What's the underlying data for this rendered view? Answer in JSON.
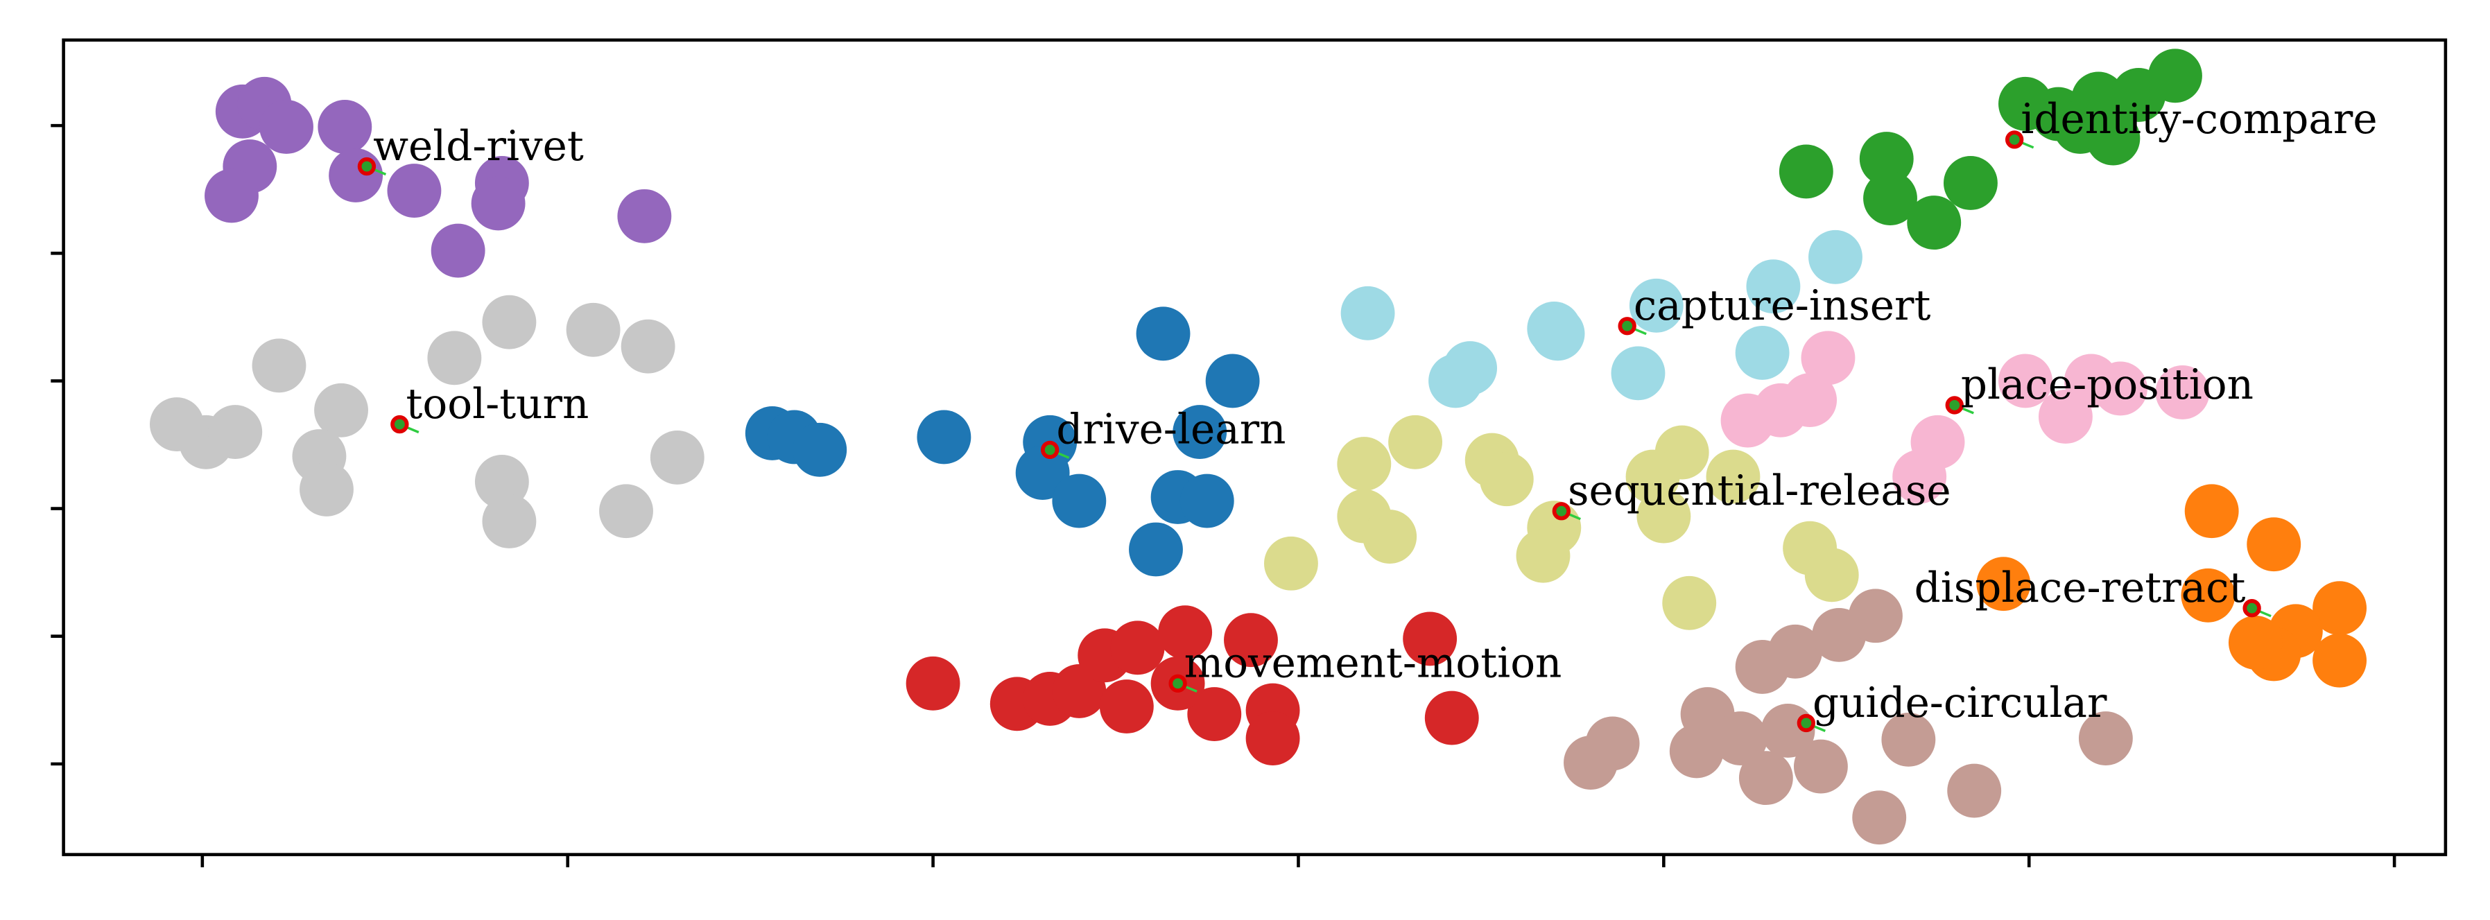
{
  "chart_data": {
    "type": "scatter",
    "xlim": [
      -3.8,
      61.4
    ],
    "ylim": [
      -7.1,
      56.7
    ],
    "xticks": [
      0,
      10,
      20,
      30,
      40,
      50,
      60
    ],
    "yticks": [
      0,
      10,
      20,
      30,
      40,
      50
    ],
    "series": [
      {
        "name": "weld-rivet",
        "color": "#9467bd",
        "x": [
          1.1,
          1.7,
          2.3,
          3.9,
          1.3,
          0.8,
          4.2,
          5.8,
          8.2,
          8.1,
          7.0,
          12.1
        ],
        "y": [
          51.1,
          51.7,
          49.9,
          49.9,
          46.8,
          44.5,
          46.1,
          44.9,
          45.5,
          43.9,
          40.2,
          42.9
        ],
        "centroid": {
          "x": 4.5,
          "y": 46.8
        }
      },
      {
        "name": "tool-turn",
        "color": "#c7c7c7",
        "x": [
          -0.7,
          0.1,
          0.9,
          2.1,
          3.8,
          3.2,
          3.4,
          6.9,
          8.4,
          10.7,
          12.2,
          8.2,
          8.4,
          11.6,
          13.0
        ],
        "y": [
          26.6,
          25.2,
          26.0,
          31.2,
          27.7,
          24.1,
          21.5,
          31.8,
          34.6,
          34.0,
          32.7,
          22.1,
          19.0,
          19.8,
          24.0
        ],
        "centroid": {
          "x": 5.4,
          "y": 26.6
        }
      },
      {
        "name": "drive-learn",
        "color": "#1f77b4",
        "x": [
          15.6,
          16.2,
          16.9,
          20.3,
          23.2,
          23.0,
          24.0,
          26.3,
          28.2,
          27.3,
          26.7,
          27.5,
          26.1
        ],
        "y": [
          25.9,
          25.6,
          24.6,
          25.6,
          25.2,
          22.8,
          20.6,
          33.7,
          30.0,
          26.0,
          20.9,
          20.6,
          16.8
        ],
        "centroid": {
          "x": 23.2,
          "y": 24.6
        }
      },
      {
        "name": "movement-motion",
        "color": "#d62728",
        "x": [
          20.0,
          22.3,
          23.2,
          24.0,
          24.7,
          25.6,
          26.9,
          25.3,
          27.7,
          29.3,
          29.3,
          28.7,
          33.6,
          34.2,
          26.7
        ],
        "y": [
          6.3,
          4.7,
          5.1,
          5.7,
          8.5,
          9.1,
          10.3,
          4.5,
          3.9,
          4.2,
          2.0,
          9.7,
          9.8,
          3.6,
          6.3
        ],
        "centroid": {
          "x": 26.7,
          "y": 6.3
        }
      },
      {
        "name": "capture-insert",
        "color": "#9edae5",
        "x": [
          31.9,
          34.7,
          34.3,
          37.0,
          37.1,
          39.8,
          39.3,
          43.0,
          44.7,
          42.7
        ],
        "y": [
          35.3,
          31.0,
          30.0,
          34.1,
          33.7,
          35.9,
          30.6,
          37.4,
          39.7,
          32.2
        ],
        "centroid": {
          "x": 39.0,
          "y": 34.3
        }
      },
      {
        "name": "identity-compare",
        "color": "#2ca02c",
        "x": [
          43.9,
          46.1,
          46.2,
          47.4,
          48.4,
          49.9,
          50.8,
          51.4,
          51.9,
          52.3,
          53.0,
          54.0
        ],
        "y": [
          46.4,
          47.4,
          44.3,
          42.4,
          45.5,
          51.7,
          50.9,
          49.9,
          52.1,
          49.0,
          52.4,
          53.9
        ],
        "centroid": {
          "x": 49.6,
          "y": 48.9
        }
      },
      {
        "name": "place-position",
        "color": "#f7b6d2",
        "x": [
          42.3,
          43.2,
          44.0,
          44.5,
          47.5,
          47.0,
          49.9,
          51.7,
          51.0,
          52.5,
          54.2
        ],
        "y": [
          26.9,
          27.7,
          28.5,
          31.8,
          25.2,
          22.5,
          30.0,
          30.0,
          27.2,
          29.4,
          29.1
        ],
        "centroid": {
          "x": 47.96,
          "y": 28.1
        }
      },
      {
        "name": "sequential-release",
        "color": "#dbdb8d",
        "x": [
          29.8,
          31.8,
          33.2,
          31.8,
          32.5,
          35.3,
          35.7,
          37.0,
          36.7,
          40.0,
          40.5,
          39.7,
          41.9,
          40.7,
          44.0,
          44.6
        ],
        "y": [
          15.7,
          23.5,
          25.2,
          19.4,
          17.8,
          23.8,
          22.3,
          18.5,
          16.3,
          19.4,
          24.4,
          22.5,
          22.5,
          12.6,
          16.9,
          14.8
        ],
        "centroid": {
          "x": 37.2,
          "y": 19.8
        }
      },
      {
        "name": "displace-retract",
        "color": "#ff7f0e",
        "x": [
          49.3,
          55.0,
          56.7,
          54.9,
          58.5,
          57.3,
          56.7,
          58.5,
          56.2
        ],
        "y": [
          14.1,
          19.8,
          17.2,
          13.2,
          12.2,
          10.4,
          8.6,
          8.1,
          9.5
        ],
        "centroid": {
          "x": 56.1,
          "y": 12.2
        }
      },
      {
        "name": "guide-circular",
        "color": "#c49c94",
        "x": [
          38.0,
          38.6,
          40.9,
          41.2,
          42.7,
          43.6,
          44.8,
          45.8,
          42.8,
          44.3,
          43.4,
          45.9,
          46.7,
          48.5,
          52.1,
          42.1
        ],
        "y": [
          0.1,
          1.6,
          1.0,
          3.9,
          7.6,
          8.8,
          10.1,
          11.6,
          -1.1,
          -0.2,
          2.6,
          -4.2,
          1.9,
          -2.1,
          2.0,
          2.0
        ],
        "centroid": {
          "x": 43.9,
          "y": 3.2
        }
      }
    ]
  }
}
